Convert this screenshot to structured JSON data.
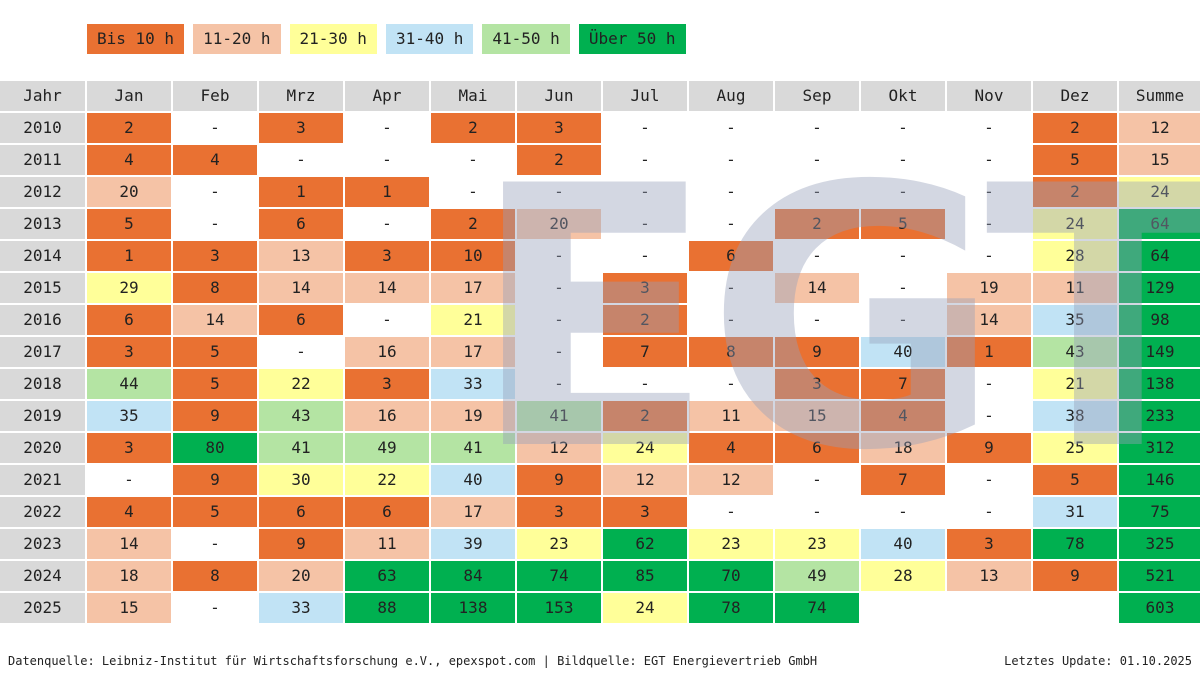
{
  "chart_data": {
    "type": "table",
    "title": "",
    "legend": [
      {
        "label": "Bis 10 h",
        "color": "#E97132",
        "min": 1,
        "max": 10
      },
      {
        "label": "11-20 h",
        "color": "#F5C3A6",
        "min": 11,
        "max": 20
      },
      {
        "label": "21-30 h",
        "color": "#FFFF99",
        "min": 21,
        "max": 30
      },
      {
        "label": "31-40 h",
        "color": "#C1E3F5",
        "min": 31,
        "max": 40
      },
      {
        "label": "41-50 h",
        "color": "#B4E4A3",
        "min": 41,
        "max": 50
      },
      {
        "label": "Über 50 h",
        "color": "#00B050",
        "min": 51,
        "max": 100000
      }
    ],
    "columns": [
      "Jahr",
      "Jan",
      "Feb",
      "Mrz",
      "Apr",
      "Mai",
      "Jun",
      "Jul",
      "Aug",
      "Sep",
      "Okt",
      "Nov",
      "Dez",
      "Summe"
    ],
    "rows": [
      [
        "2010",
        "2",
        "-",
        "3",
        "-",
        "2",
        "3",
        "-",
        "-",
        "-",
        "-",
        "-",
        "2",
        "12"
      ],
      [
        "2011",
        "4",
        "4",
        "-",
        "-",
        "-",
        "2",
        "-",
        "-",
        "-",
        "-",
        "-",
        "5",
        "15"
      ],
      [
        "2012",
        "20",
        "-",
        "1",
        "1",
        "-",
        "-",
        "-",
        "-",
        "-",
        "-",
        "-",
        "2",
        "24"
      ],
      [
        "2013",
        "5",
        "-",
        "6",
        "-",
        "2",
        "20",
        "-",
        "-",
        "2",
        "5",
        "-",
        "24",
        "64"
      ],
      [
        "2014",
        "1",
        "3",
        "13",
        "3",
        "10",
        "-",
        "-",
        "6",
        "-",
        "-",
        "-",
        "28",
        "64"
      ],
      [
        "2015",
        "29",
        "8",
        "14",
        "14",
        "17",
        "-",
        "3",
        "-",
        "14",
        "-",
        "19",
        "11",
        "129"
      ],
      [
        "2016",
        "6",
        "14",
        "6",
        "-",
        "21",
        "-",
        "2",
        "-",
        "-",
        "-",
        "14",
        "35",
        "98"
      ],
      [
        "2017",
        "3",
        "5",
        "-",
        "16",
        "17",
        "-",
        "7",
        "8",
        "9",
        "40",
        "1",
        "43",
        "149"
      ],
      [
        "2018",
        "44",
        "5",
        "22",
        "3",
        "33",
        "-",
        "-",
        "-",
        "3",
        "7",
        "-",
        "21",
        "138"
      ],
      [
        "2019",
        "35",
        "9",
        "43",
        "16",
        "19",
        "41",
        "2",
        "11",
        "15",
        "4",
        "-",
        "38",
        "233"
      ],
      [
        "2020",
        "3",
        "80",
        "41",
        "49",
        "41",
        "12",
        "24",
        "4",
        "6",
        "18",
        "9",
        "25",
        "312"
      ],
      [
        "2021",
        "-",
        "9",
        "30",
        "22",
        "40",
        "9",
        "12",
        "12",
        "-",
        "7",
        "-",
        "5",
        "146"
      ],
      [
        "2022",
        "4",
        "5",
        "6",
        "6",
        "17",
        "3",
        "3",
        "-",
        "-",
        "-",
        "-",
        "31",
        "75"
      ],
      [
        "2023",
        "14",
        "-",
        "9",
        "11",
        "39",
        "23",
        "62",
        "23",
        "23",
        "40",
        "3",
        "78",
        "325"
      ],
      [
        "2024",
        "18",
        "8",
        "20",
        "63",
        "84",
        "74",
        "85",
        "70",
        "49",
        "28",
        "13",
        "9",
        "521"
      ],
      [
        "2025",
        "15",
        "-",
        "33",
        "88",
        "138",
        "153",
        "24",
        "78",
        "74",
        "",
        "",
        "",
        "603"
      ]
    ]
  },
  "watermark": "EGT",
  "footer": {
    "source": "Datenquelle: Leibniz-Institut für Wirtschaftsforschung e.V., epexspot.com | Bildquelle: EGT Energievertrieb GmbH",
    "update": "Letztes Update: 01.10.2025"
  },
  "header_color": "#D9D9D9"
}
